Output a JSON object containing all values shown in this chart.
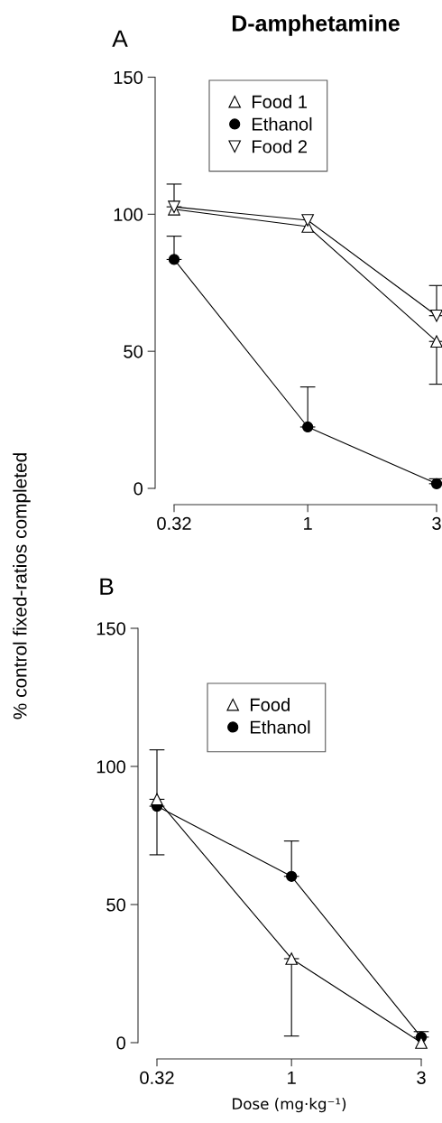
{
  "chart_data": [
    {
      "type": "line",
      "title": "D-amphetamine",
      "ylabel": "% control fixed-ratios completed",
      "annotations": [
        "A"
      ],
      "log": "x",
      "x": [
        0.32,
        1,
        3
      ],
      "xlim": [
        0.32,
        3
      ],
      "xticks": [
        0.32,
        1,
        3
      ],
      "ylim": [
        0,
        150
      ],
      "yticks": [
        0,
        50,
        100,
        150
      ],
      "grid": false,
      "legend": "top left",
      "line_style": "solid",
      "series": [
        {
          "name": "Food 1",
          "color": "#000000",
          "marker": "triangle",
          "values": [
            101.8,
            95.5,
            53.6
          ],
          "errors": [
            null,
            null,
            [
              38,
              53.6
            ]
          ]
        },
        {
          "name": "Ethanol",
          "color": "#000000",
          "marker": "circle",
          "values": [
            83.5,
            22.4,
            1.7
          ],
          "errors": [
            [
              83.5,
              92
            ],
            [
              22.4,
              37
            ],
            [
              1.7,
              3.5
            ]
          ]
        },
        {
          "name": "Food 2",
          "color": "#000000",
          "marker": "triangle_down",
          "values": [
            102.7,
            97.8,
            63
          ],
          "errors": [
            [
              102.7,
              111
            ],
            null,
            [
              63,
              74
            ]
          ]
        }
      ]
    },
    {
      "type": "line",
      "xlabel": "Dose (mg·kg⁻¹)",
      "annotations": [
        "B"
      ],
      "log": "x",
      "x": [
        0.32,
        1,
        3
      ],
      "xlim": [
        0.32,
        3
      ],
      "xticks": [
        0.32,
        1,
        3
      ],
      "ylim": [
        0,
        150
      ],
      "yticks": [
        0,
        50,
        100,
        150
      ],
      "grid": false,
      "legend": "top left",
      "line_style": "solid",
      "series": [
        {
          "name": "Food",
          "color": "#000000",
          "marker": "triangle",
          "values": [
            88.1,
            30.4,
            0
          ],
          "errors": [
            [
              88.1,
              106
            ],
            [
              2.4,
              30.4
            ],
            null
          ]
        },
        {
          "name": "Ethanol",
          "color": "#000000",
          "marker": "circle",
          "values": [
            85.6,
            60.2,
            2
          ],
          "errors": [
            [
              68,
              85.6
            ],
            [
              60.2,
              73
            ],
            [
              2,
              4
            ]
          ]
        }
      ]
    }
  ]
}
